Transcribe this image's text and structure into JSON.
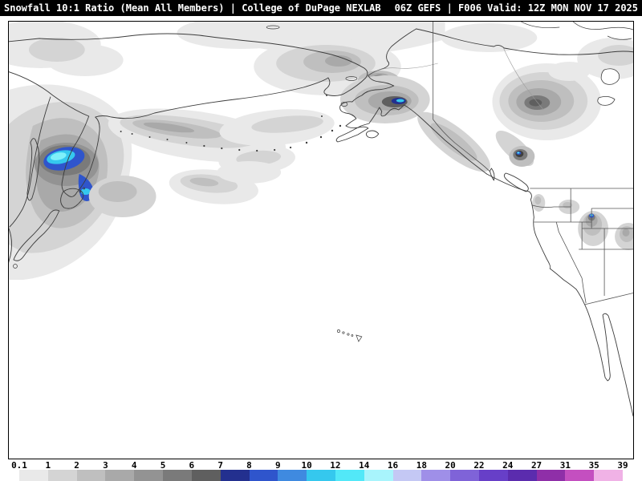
{
  "header": {
    "left": "Snowfall 10:1 Ratio (Mean All Members) | College of DuPage NEXLAB",
    "right": "06Z GEFS | F006 Valid: 12Z MON NOV 17 2025"
  },
  "map": {
    "background": "#ffffff",
    "coastline_color": "#3c3c3c",
    "political_border_color": "#555555",
    "frame_color": "#000000",
    "snow_fill_levels": [
      "#e9e9e9",
      "#d4d4d4",
      "#bfbfbf",
      "#a9a9a9",
      "#939393",
      "#7a7a7a",
      "#5f5f5f"
    ],
    "snow_max_colors": {
      "navy": "#23308f",
      "blue": "#2f55cc",
      "cyan": "#35c8ee",
      "bright_cyan": "#52e8f8"
    }
  },
  "colorbar": {
    "ticks": [
      "0.1",
      "1",
      "2",
      "3",
      "4",
      "5",
      "6",
      "7",
      "8",
      "9",
      "10",
      "12",
      "14",
      "16",
      "18",
      "20",
      "22",
      "24",
      "27",
      "31",
      "35",
      "39"
    ],
    "segment_colors": [
      "#e9e9e9",
      "#d4d4d4",
      "#bfbfbf",
      "#a9a9a9",
      "#939393",
      "#7a7a7a",
      "#5f5f5f",
      "#23308f",
      "#2f55cc",
      "#3f8ae0",
      "#35c8ee",
      "#52e8f8",
      "#a8f4fc",
      "#c4c8f4",
      "#9f8fe8",
      "#7f63d8",
      "#673fc8",
      "#5b2cae",
      "#8f2fa8",
      "#c44fc0",
      "#f0b2e6"
    ]
  }
}
